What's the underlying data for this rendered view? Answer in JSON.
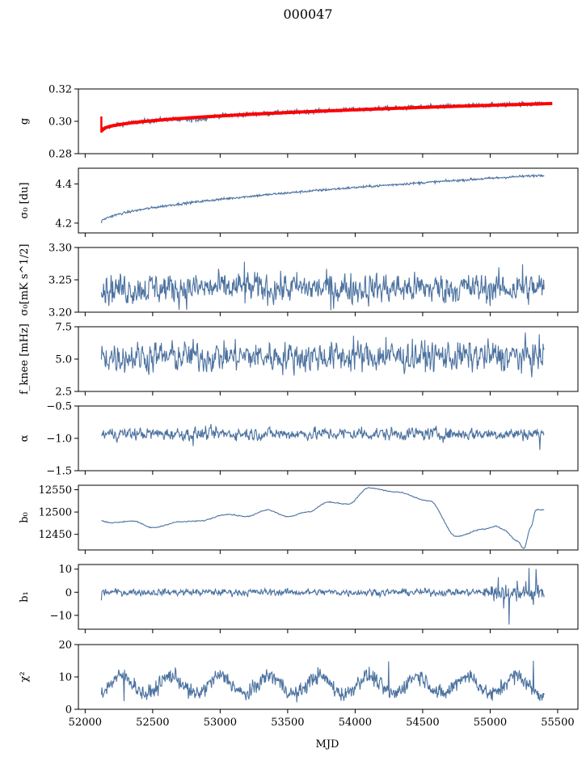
{
  "title": "000047",
  "xlabel": "MJD",
  "colors": {
    "series": "#4c72a0",
    "fit": "#ff0000",
    "axes": "#000000"
  },
  "chart_data": {
    "type": "line",
    "shared_x": {
      "label": "MJD",
      "lim": [
        51950,
        55650
      ],
      "ticks": [
        52000,
        52500,
        53000,
        53500,
        54000,
        54500,
        55000,
        55500
      ],
      "range": [
        52120,
        55400
      ]
    },
    "panels": [
      {
        "id": "g",
        "ylabel": "g",
        "ylim": [
          0.28,
          0.32
        ],
        "yticks": [
          0.28,
          0.3,
          0.32
        ],
        "ytick_labels": [
          "0.28",
          "0.30",
          "0.32"
        ],
        "kind": "trend",
        "start": 0.294,
        "end": 0.311,
        "shape": 0.45,
        "noise": 0.0008,
        "dip": 0.3,
        "has_fit": true
      },
      {
        "id": "sigma0_du",
        "ylabel": "σ₀ [du]",
        "ylim": [
          4.15,
          4.48
        ],
        "yticks": [
          4.2,
          4.4
        ],
        "ytick_labels": [
          "4.2",
          "4.4"
        ],
        "kind": "trend",
        "start": 4.205,
        "end": 4.445,
        "shape": 0.55,
        "noise": 0.003
      },
      {
        "id": "sigma0_mk",
        "ylabel": "σ₀[mK s^1/2]",
        "ylim": [
          3.2,
          3.3
        ],
        "yticks": [
          3.2,
          3.25,
          3.3
        ],
        "ytick_labels": [
          "3.20",
          "3.25",
          "3.30"
        ],
        "kind": "noise",
        "mean": 3.237,
        "amp": 0.011,
        "spikes": [
          [
            53820,
            3.203
          ],
          [
            53180,
            3.278
          ],
          [
            55240,
            3.274
          ]
        ]
      },
      {
        "id": "fknee",
        "ylabel": "f_knee [mHz]",
        "ylim": [
          2.5,
          7.5
        ],
        "yticks": [
          2.5,
          5.0,
          7.5
        ],
        "ytick_labels": [
          "2.5",
          "5.0",
          "7.5"
        ],
        "kind": "noise",
        "mean": 5.2,
        "amp": 0.55,
        "spikes": [
          [
            53990,
            6.8
          ],
          [
            54230,
            6.7
          ],
          [
            55210,
            4.2
          ]
        ]
      },
      {
        "id": "alpha",
        "ylabel": "α",
        "ylim": [
          -1.5,
          -0.5
        ],
        "yticks": [
          -1.5,
          -1.0,
          -0.5
        ],
        "ytick_labels": [
          "−1.5",
          "−1.0",
          "−0.5"
        ],
        "kind": "noise",
        "mean": -0.93,
        "amp": 0.045,
        "spikes": [
          [
            52800,
            -1.12
          ],
          [
            54050,
            -0.82
          ],
          [
            55370,
            -1.18
          ]
        ]
      },
      {
        "id": "b0",
        "ylabel": "b₀",
        "ylim": [
          12415,
          12560
        ],
        "yticks": [
          12450,
          12500,
          12550
        ],
        "ytick_labels": [
          "12450",
          "12500",
          "12550"
        ],
        "kind": "path",
        "points": [
          [
            52120,
            12480
          ],
          [
            52200,
            12476
          ],
          [
            52350,
            12480
          ],
          [
            52500,
            12465
          ],
          [
            52700,
            12478
          ],
          [
            52850,
            12480
          ],
          [
            53050,
            12495
          ],
          [
            53200,
            12490
          ],
          [
            53350,
            12505
          ],
          [
            53500,
            12490
          ],
          [
            53650,
            12500
          ],
          [
            53800,
            12522
          ],
          [
            53950,
            12518
          ],
          [
            54100,
            12554
          ],
          [
            54300,
            12545
          ],
          [
            54550,
            12525
          ],
          [
            54750,
            12445
          ],
          [
            54950,
            12462
          ],
          [
            55050,
            12468
          ],
          [
            55100,
            12460
          ],
          [
            55200,
            12435
          ],
          [
            55250,
            12418
          ],
          [
            55300,
            12465
          ],
          [
            55340,
            12505
          ],
          [
            55400,
            12505
          ]
        ]
      },
      {
        "id": "b1",
        "ylabel": "b₁",
        "ylim": [
          -16,
          12
        ],
        "yticks": [
          -10,
          0,
          10
        ],
        "ytick_labels": [
          "−10",
          "0",
          "10"
        ],
        "kind": "noise",
        "mean": 0.0,
        "amp": 0.7,
        "spikes": [
          [
            52120,
            -3.5
          ],
          [
            55060,
            6.5
          ],
          [
            55100,
            -7
          ],
          [
            55140,
            -14
          ],
          [
            55200,
            5
          ],
          [
            55290,
            10.5
          ],
          [
            55320,
            -5.5
          ],
          [
            55340,
            10
          ]
        ]
      },
      {
        "id": "chi2",
        "ylabel": "χ²",
        "ylim": [
          0,
          20
        ],
        "yticks": [
          0,
          10,
          20
        ],
        "ytick_labels": [
          "0",
          "10",
          "20"
        ],
        "kind": "periodic",
        "mean": 7.5,
        "amp": 2.8,
        "period": 365,
        "noise": 1.2,
        "spikes": [
          [
            52290,
            2.5
          ],
          [
            54250,
            14.8
          ],
          [
            55320,
            15.0
          ]
        ]
      }
    ]
  }
}
